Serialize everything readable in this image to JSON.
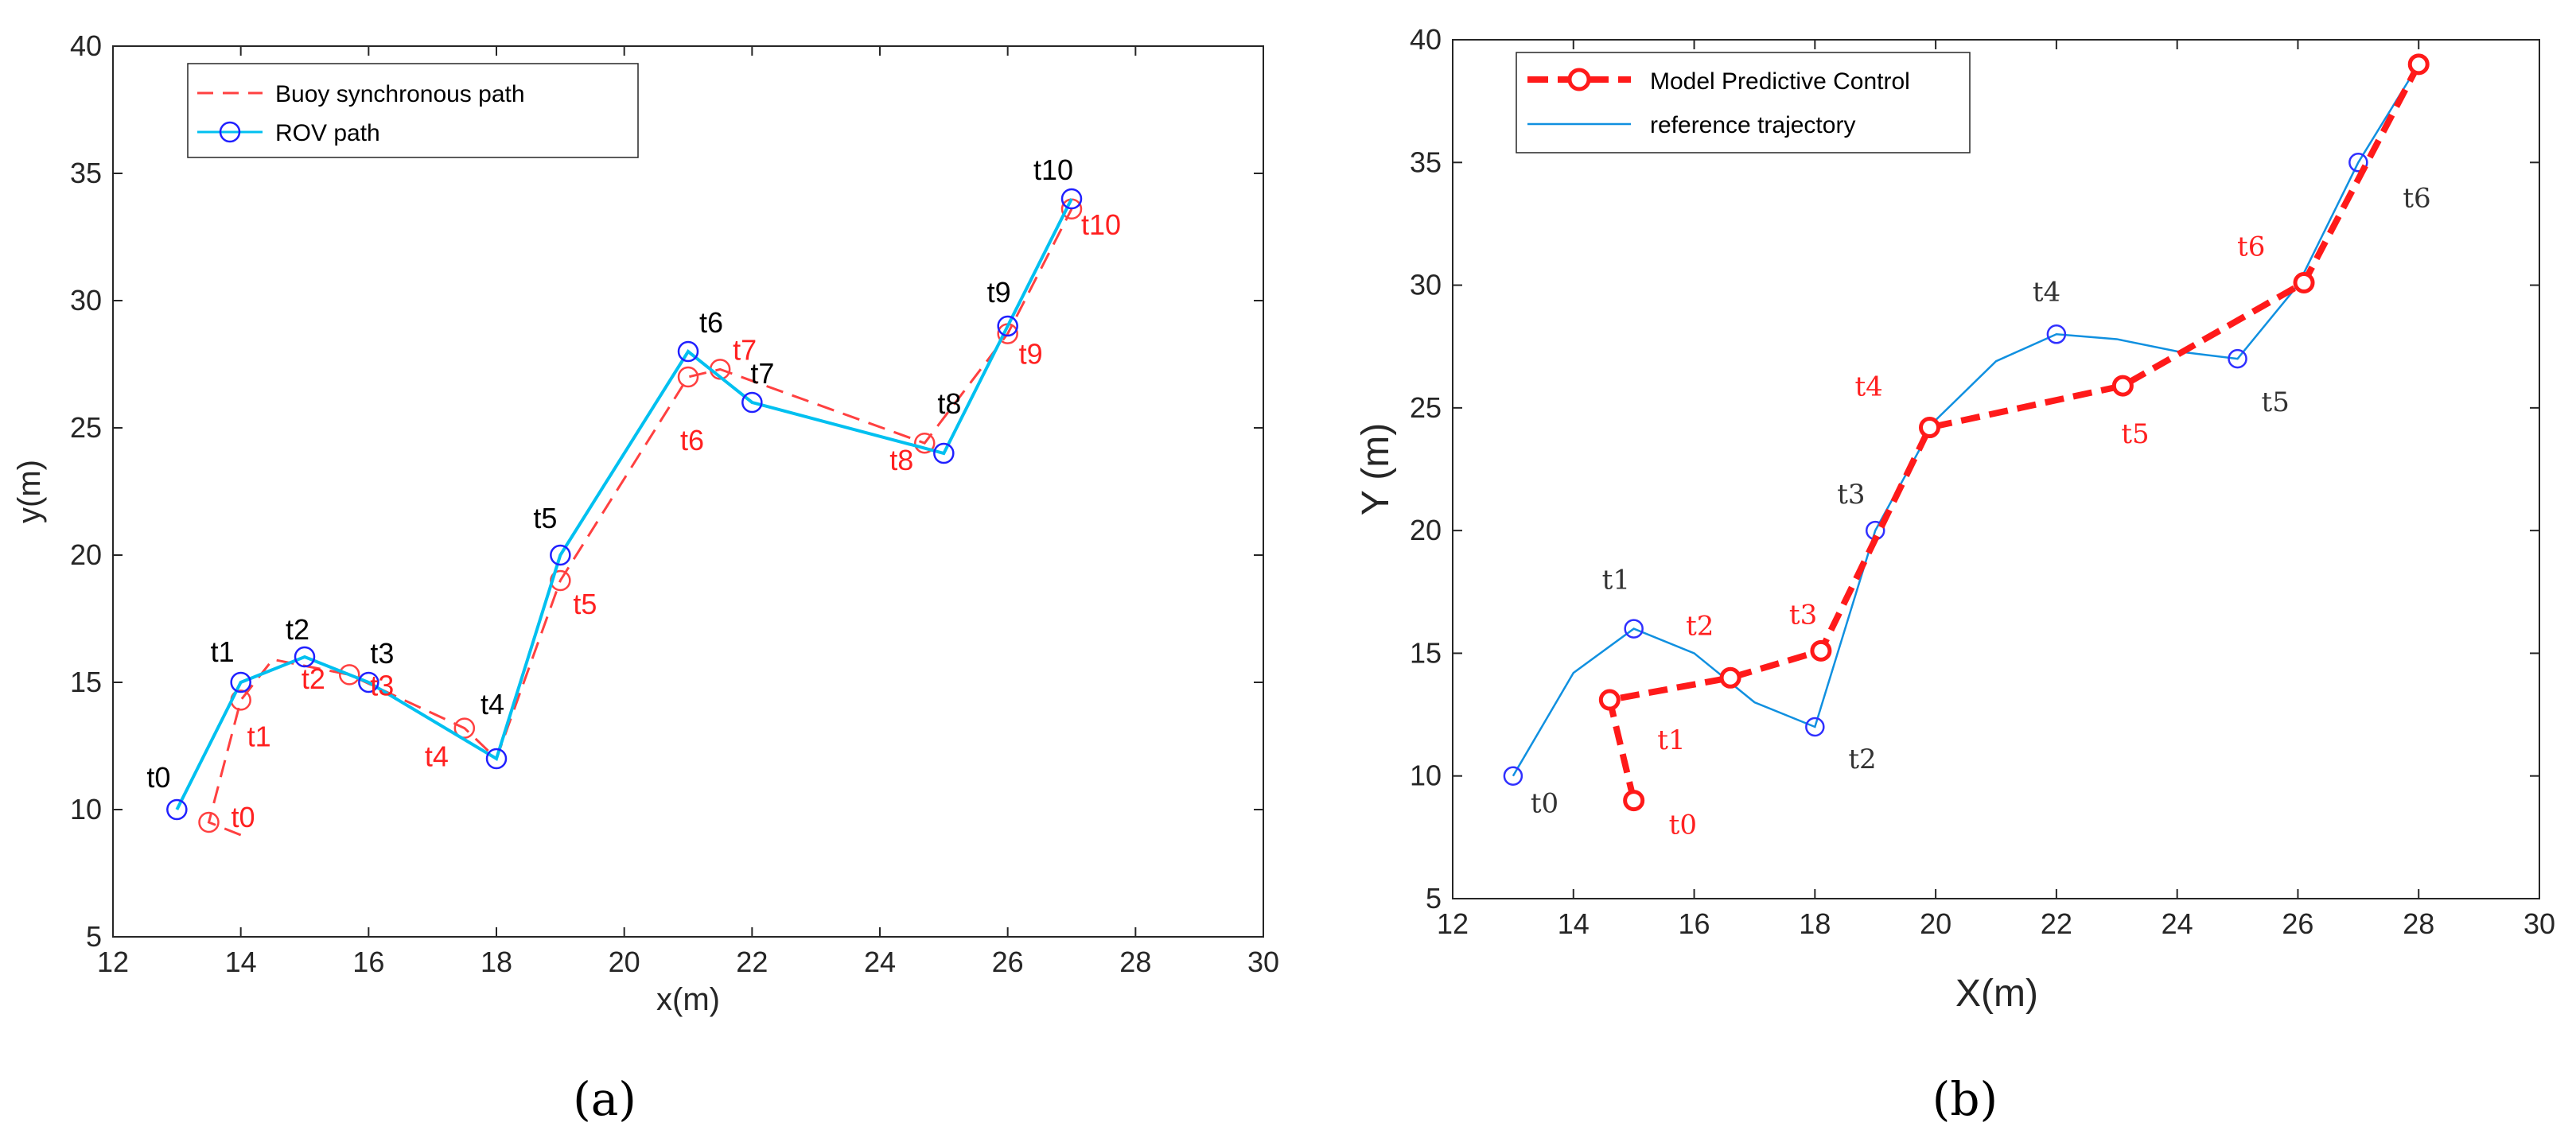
{
  "colors": {
    "buoy": "#ff4040",
    "rov_line": "#00c0f0",
    "rov_marker": "#2020ff",
    "mpc": "#ff1a1a",
    "reference": "#1090e0",
    "ref_marker": "#3030ff",
    "label_black": "#000000",
    "label_red": "#ff2020",
    "label_dark": "#333333"
  },
  "chart_data": [
    {
      "type": "line",
      "caption": "(a)",
      "xlabel": "x(m)",
      "ylabel": "y(m)",
      "xlim": [
        12,
        30
      ],
      "ylim": [
        5,
        40
      ],
      "xticks": [
        "12",
        "14",
        "16",
        "18",
        "20",
        "22",
        "24",
        "26",
        "28",
        "30"
      ],
      "yticks": [
        "5",
        "10",
        "15",
        "20",
        "25",
        "30",
        "35",
        "40"
      ],
      "legend": [
        "Buoy synchronous path",
        "ROV path"
      ],
      "legend_position": "top-left",
      "series": [
        {
          "name": "Buoy synchronous path",
          "style": "dashed-red",
          "x": [
            14,
            13.5,
            14,
            14.5,
            15.7,
            17.5,
            18,
            19,
            21,
            21.5,
            24.7,
            26,
            27
          ],
          "y": [
            9,
            9.5,
            14.3,
            15.9,
            15.3,
            13.2,
            12,
            19,
            27,
            27.3,
            24.4,
            28.7,
            33.6
          ],
          "markers": [
            {
              "x": 13.5,
              "y": 9.5
            },
            {
              "x": 14,
              "y": 14.3
            },
            {
              "x": 15.7,
              "y": 15.3
            },
            {
              "x": 17.5,
              "y": 13.2
            },
            {
              "x": 19,
              "y": 19
            },
            {
              "x": 21,
              "y": 27
            },
            {
              "x": 21.5,
              "y": 27.3
            },
            {
              "x": 24.7,
              "y": 24.4
            },
            {
              "x": 26,
              "y": 28.7
            },
            {
              "x": 27,
              "y": 33.6
            }
          ],
          "labels": [
            {
              "text": "t0",
              "x": 13.5,
              "y": 9.5
            },
            {
              "text": "t1",
              "x": 14,
              "y": 14.3
            },
            {
              "text": "t2",
              "x": 14.5,
              "y": 15
            },
            {
              "text": "t3",
              "x": 15.7,
              "y": 15.3
            },
            {
              "text": "t4",
              "x": 17.5,
              "y": 13.2
            },
            {
              "text": "t5",
              "x": 19,
              "y": 19
            },
            {
              "text": "t6",
              "x": 21,
              "y": 27
            },
            {
              "text": "t7",
              "x": 21.5,
              "y": 27.3
            },
            {
              "text": "t8",
              "x": 24.7,
              "y": 24.4
            },
            {
              "text": "t9",
              "x": 26,
              "y": 28.7
            },
            {
              "text": "t10",
              "x": 27,
              "y": 33.6
            }
          ]
        },
        {
          "name": "ROV path",
          "style": "solid-cyan-circles",
          "x": [
            13,
            14,
            15,
            16,
            18,
            19,
            21,
            22,
            25,
            26,
            27
          ],
          "y": [
            10,
            15,
            16,
            15,
            12,
            20,
            28,
            26,
            24,
            29,
            34
          ],
          "labels": [
            {
              "text": "t0",
              "x": 13,
              "y": 10
            },
            {
              "text": "t1",
              "x": 14,
              "y": 15
            },
            {
              "text": "t2",
              "x": 15,
              "y": 16
            },
            {
              "text": "t3",
              "x": 16,
              "y": 15
            },
            {
              "text": "t4",
              "x": 18,
              "y": 12
            },
            {
              "text": "t5",
              "x": 19,
              "y": 20
            },
            {
              "text": "t6",
              "x": 21,
              "y": 28
            },
            {
              "text": "t7",
              "x": 22,
              "y": 26
            },
            {
              "text": "t8",
              "x": 25,
              "y": 24
            },
            {
              "text": "t9",
              "x": 26,
              "y": 29
            },
            {
              "text": "t10",
              "x": 27,
              "y": 34
            }
          ]
        }
      ]
    },
    {
      "type": "line",
      "caption": "(b)",
      "xlabel": "X(m)",
      "ylabel": "Y (m)",
      "xlim": [
        12,
        30
      ],
      "ylim": [
        5,
        40
      ],
      "xticks": [
        "12",
        "14",
        "16",
        "18",
        "20",
        "22",
        "24",
        "26",
        "28",
        "30"
      ],
      "yticks": [
        "5",
        "10",
        "15",
        "20",
        "25",
        "30",
        "35",
        "40"
      ],
      "legend": [
        "Model Predictive Control",
        "reference trajectory"
      ],
      "legend_position": "top-left",
      "series": [
        {
          "name": "Model Predictive Control",
          "style": "thick-dashed-red-circles",
          "x": [
            15,
            14.6,
            16.6,
            18.1,
            19.9,
            23.1,
            26.1,
            28
          ],
          "y": [
            9,
            13.1,
            14,
            15.1,
            24.2,
            25.9,
            30.1,
            39
          ],
          "labels": [
            {
              "text": "t0",
              "x": 15,
              "y": 9
            },
            {
              "text": "t1",
              "x": 14.6,
              "y": 13.1
            },
            {
              "text": "t2",
              "x": 16.6,
              "y": 14
            },
            {
              "text": "t3",
              "x": 18.1,
              "y": 15.1
            },
            {
              "text": "t4",
              "x": 19.9,
              "y": 24.2
            },
            {
              "text": "t5",
              "x": 23.1,
              "y": 25.9
            },
            {
              "text": "t6",
              "x": 26.1,
              "y": 30.1
            }
          ]
        },
        {
          "name": "reference trajectory",
          "style": "thin-solid-blue",
          "x": [
            13,
            14,
            15,
            16,
            17,
            18,
            19,
            20,
            21,
            22,
            23,
            24,
            25,
            26,
            27,
            28
          ],
          "y": [
            10,
            14.2,
            16,
            15,
            13,
            12,
            20,
            24.5,
            26.9,
            28,
            27.8,
            27.3,
            27,
            30,
            35,
            39
          ],
          "markers": [
            {
              "x": 13,
              "y": 10
            },
            {
              "x": 15,
              "y": 16
            },
            {
              "x": 18,
              "y": 12
            },
            {
              "x": 19,
              "y": 20
            },
            {
              "x": 22,
              "y": 28
            },
            {
              "x": 25,
              "y": 27
            },
            {
              "x": 27,
              "y": 35
            }
          ],
          "labels": [
            {
              "text": "t0",
              "x": 13,
              "y": 10
            },
            {
              "text": "t1",
              "x": 15,
              "y": 16
            },
            {
              "text": "t2",
              "x": 18,
              "y": 12
            },
            {
              "text": "t3",
              "x": 19,
              "y": 20
            },
            {
              "text": "t4",
              "x": 22,
              "y": 28
            },
            {
              "text": "t5",
              "x": 25,
              "y": 27
            },
            {
              "text": "t6",
              "x": 27,
              "y": 35
            }
          ]
        }
      ]
    }
  ]
}
